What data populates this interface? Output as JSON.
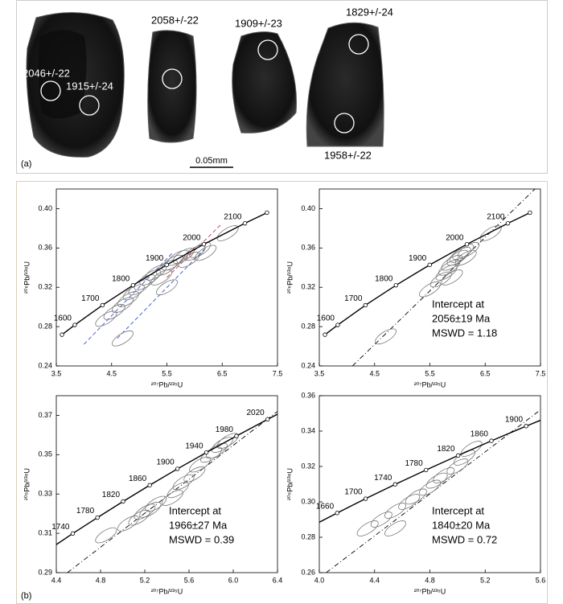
{
  "panel_a": {
    "label": "(a)",
    "scale": "0.05mm",
    "spots": [
      "2046+/-22",
      "1915+/-24",
      "2058+/-22",
      "1909+/-23",
      "1829+/-24",
      "1958+/-22"
    ]
  },
  "panel_b_label": "(b)",
  "chart_data": [
    {
      "type": "concordia",
      "x_label": "²⁰⁷Pb/²³⁵U",
      "y_label": "²⁰⁶Pb/²³⁸U",
      "xlim": [
        3.5,
        7.5
      ],
      "ylim": [
        0.24,
        0.42
      ],
      "xticks": [
        3.5,
        4.5,
        5.5,
        6.5,
        7.5
      ],
      "yticks": [
        0.24,
        0.28,
        0.32,
        0.36,
        {
          "value": 0.4,
          "label": "0.40"
        }
      ],
      "concordia": {
        "x": [
          3.602,
          3.834,
          4.335,
          4.887,
          5.496,
          6.169,
          6.911,
          7.31
        ],
        "y": [
          0.2718,
          0.2817,
          0.3018,
          0.3221,
          0.3428,
          0.3638,
          0.3851,
          0.3959
        ],
        "labels": [
          null,
          1600,
          1700,
          1800,
          1900,
          2000,
          2100,
          null
        ]
      },
      "ellipses": {
        "x": [
          4.4,
          4.55,
          4.7,
          4.8,
          4.9,
          5.0,
          5.1,
          5.2,
          5.3,
          5.4,
          5.5,
          5.6,
          5.7,
          5.8,
          5.9,
          6.0,
          6.1,
          6.2,
          6.6,
          4.7,
          5.5
        ],
        "y": [
          0.288,
          0.295,
          0.302,
          0.308,
          0.315,
          0.32,
          0.325,
          0.33,
          0.335,
          0.33,
          0.34,
          0.345,
          0.35,
          0.352,
          0.348,
          0.355,
          0.358,
          0.355,
          0.375,
          0.268,
          0.32
        ]
      },
      "discordia": [
        {
          "x": [
            4.0,
            5.6
          ],
          "y": [
            0.262,
            0.355
          ],
          "color": "#3355cc",
          "style": "dashed"
        },
        {
          "x": [
            4.6,
            6.2
          ],
          "y": [
            0.268,
            0.36
          ],
          "color": "#3355cc",
          "style": "dashed"
        },
        {
          "x": [
            5.5,
            6.5
          ],
          "y": [
            0.33,
            0.385
          ],
          "color": "#cc3355",
          "style": "dashed"
        }
      ]
    },
    {
      "type": "concordia",
      "x_label": "²⁰⁷Pb/²³⁵U",
      "y_label": "²⁰⁶Pb/²³⁸U",
      "xlim": [
        3.5,
        7.5
      ],
      "ylim": [
        0.24,
        0.42
      ],
      "xticks": [
        3.5,
        4.5,
        5.5,
        6.5,
        7.5
      ],
      "yticks": [
        0.24,
        0.28,
        0.32,
        0.36,
        {
          "value": 0.4,
          "label": "0.40"
        }
      ],
      "concordia": {
        "x": [
          3.602,
          3.834,
          4.335,
          4.887,
          5.496,
          6.169,
          6.911,
          7.31
        ],
        "y": [
          0.2718,
          0.2817,
          0.3018,
          0.3221,
          0.3428,
          0.3638,
          0.3851,
          0.3959
        ],
        "labels": [
          null,
          1600,
          1700,
          1800,
          1900,
          2000,
          2100,
          null
        ]
      },
      "ellipses": {
        "x": [
          4.7,
          5.5,
          5.7,
          5.8,
          5.85,
          5.9,
          6.0,
          6.05,
          6.1,
          6.15,
          6.2,
          5.9,
          6.6
        ],
        "y": [
          0.27,
          0.318,
          0.328,
          0.335,
          0.34,
          0.345,
          0.35,
          0.353,
          0.356,
          0.35,
          0.358,
          0.33,
          0.375
        ]
      },
      "discordia": [
        {
          "x": [
            4.1,
            7.4
          ],
          "y": [
            0.24,
            0.42
          ],
          "color": "#000000",
          "style": "dashdot"
        }
      ],
      "annotation": [
        "Intercept at",
        "2056±19 Ma",
        "MSWD = 1.18"
      ]
    },
    {
      "type": "concordia",
      "x_label": "²⁰⁷Pb/²³⁵U",
      "y_label": "²⁰⁶Pb/²³⁸U",
      "xlim": [
        4.4,
        6.4
      ],
      "ylim": [
        0.29,
        0.38
      ],
      "xticks": [
        4.4,
        4.8,
        5.2,
        5.6,
        {
          "value": 6,
          "label": "6.0"
        },
        6.4
      ],
      "yticks": [
        0.29,
        0.31,
        0.33,
        0.35,
        0.37
      ],
      "concordia": {
        "x": [
          4.335,
          4.549,
          4.772,
          5.004,
          5.245,
          5.496,
          5.757,
          6.029,
          6.311,
          6.605
        ],
        "y": [
          0.3018,
          0.3099,
          0.318,
          0.3262,
          0.3345,
          0.3428,
          0.3511,
          0.3595,
          0.368,
          0.3765
        ],
        "labels": [
          null,
          1740,
          1780,
          1820,
          1860,
          1900,
          1940,
          1980,
          2020,
          null
        ]
      },
      "ellipses": {
        "x": [
          4.85,
          5.05,
          5.15,
          5.2,
          5.25,
          5.3,
          5.45,
          5.5,
          5.55,
          5.65,
          5.7,
          5.8,
          5.85,
          5.9,
          5.95
        ],
        "y": [
          0.309,
          0.315,
          0.318,
          0.321,
          0.322,
          0.325,
          0.328,
          0.332,
          0.336,
          0.34,
          0.345,
          0.35,
          0.352,
          0.355,
          0.357
        ]
      },
      "discordia": [
        {
          "x": [
            4.5,
            6.4
          ],
          "y": [
            0.29,
            0.372
          ],
          "color": "#000000",
          "style": "dashdot"
        }
      ],
      "annotation": [
        "Intercept at",
        "1966±27 Ma",
        "MSWD = 0.39"
      ]
    },
    {
      "type": "concordia",
      "x_label": "²⁰⁷Pb/²³⁵U",
      "y_label": "²⁰⁶Pb/²³⁸U",
      "xlim": [
        4.0,
        5.6
      ],
      "ylim": [
        0.26,
        0.36
      ],
      "xticks": [
        {
          "value": 4,
          "label": "4.0"
        },
        4.4,
        4.8,
        5.2,
        5.6
      ],
      "yticks": [
        0.26,
        0.28,
        {
          "value": 0.3,
          "label": "0.30"
        },
        0.32,
        0.34,
        0.36
      ],
      "concordia": {
        "x": [
          3.931,
          4.129,
          4.335,
          4.549,
          4.772,
          5.004,
          5.245,
          5.496,
          5.757
        ],
        "y": [
          0.2857,
          0.2937,
          0.3018,
          0.3099,
          0.318,
          0.3262,
          0.3345,
          0.3428,
          0.3511
        ],
        "labels": [
          null,
          1660,
          1700,
          1740,
          1780,
          1820,
          1860,
          1900,
          null
        ]
      },
      "ellipses": {
        "x": [
          4.35,
          4.45,
          4.55,
          4.65,
          4.7,
          4.8,
          4.85,
          4.9,
          5.0,
          5.05,
          5.1,
          4.55
        ],
        "y": [
          0.285,
          0.29,
          0.295,
          0.3,
          0.303,
          0.308,
          0.312,
          0.315,
          0.32,
          0.325,
          0.33,
          0.285
        ]
      },
      "discordia": [
        {
          "x": [
            4.05,
            5.6
          ],
          "y": [
            0.26,
            0.352
          ],
          "color": "#000000",
          "style": "dashdot"
        }
      ],
      "annotation": [
        "Intercept at",
        "1840±20 Ma",
        "MSWD = 0.72"
      ]
    }
  ]
}
